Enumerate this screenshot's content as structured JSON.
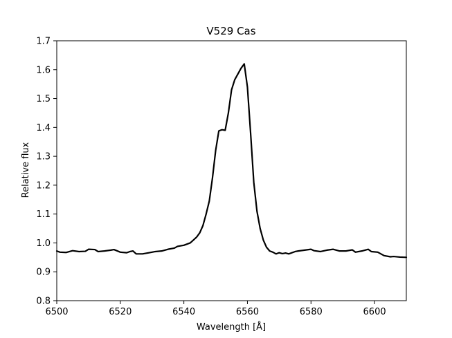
{
  "chart_data": {
    "type": "line",
    "title": "V529 Cas",
    "xlabel": "Wavelength [Å]",
    "ylabel": "Relative flux",
    "xlim": [
      6500,
      6610
    ],
    "ylim": [
      0.8,
      1.7
    ],
    "grid": false,
    "x_ticks": [
      6500,
      6520,
      6540,
      6560,
      6580,
      6600
    ],
    "x_tick_labels": [
      "6500",
      "6520",
      "6540",
      "6560",
      "6580",
      "6600"
    ],
    "y_ticks": [
      0.8,
      0.9,
      1.0,
      1.1,
      1.2,
      1.3,
      1.4,
      1.5,
      1.6,
      1.7
    ],
    "y_tick_labels": [
      "0.8",
      "0.9",
      "1.0",
      "1.1",
      "1.2",
      "1.3",
      "1.4",
      "1.5",
      "1.6",
      "1.7"
    ],
    "line_color": "#000000",
    "series": [
      {
        "x": [
          6500,
          6501,
          6503,
          6505,
          6507,
          6509,
          6510,
          6512,
          6513,
          6515,
          6517,
          6518,
          6520,
          6522,
          6523,
          6524,
          6525,
          6527,
          6529,
          6531,
          6533,
          6535,
          6537,
          6538,
          6540,
          6542,
          6543,
          6544,
          6545,
          6546,
          6547,
          6548,
          6549,
          6550,
          6551,
          6552,
          6553,
          6554,
          6555,
          6556,
          6557,
          6558,
          6559,
          6560,
          6561,
          6562,
          6563,
          6564,
          6565,
          6566,
          6567,
          6568,
          6569,
          6570,
          6571,
          6572,
          6573,
          6575,
          6576,
          6578,
          6580,
          6581,
          6583,
          6585,
          6587,
          6589,
          6591,
          6593,
          6594,
          6596,
          6598,
          6599,
          6601,
          6603,
          6605,
          6606,
          6608,
          6610
        ],
        "y": [
          0.972,
          0.968,
          0.967,
          0.973,
          0.97,
          0.971,
          0.978,
          0.977,
          0.97,
          0.972,
          0.975,
          0.977,
          0.968,
          0.966,
          0.97,
          0.972,
          0.962,
          0.962,
          0.966,
          0.97,
          0.972,
          0.978,
          0.982,
          0.988,
          0.992,
          1.0,
          1.01,
          1.02,
          1.035,
          1.06,
          1.1,
          1.145,
          1.225,
          1.32,
          1.388,
          1.392,
          1.39,
          1.45,
          1.53,
          1.565,
          1.585,
          1.605,
          1.62,
          1.54,
          1.38,
          1.21,
          1.11,
          1.05,
          1.01,
          0.985,
          0.972,
          0.968,
          0.962,
          0.966,
          0.963,
          0.965,
          0.962,
          0.97,
          0.972,
          0.975,
          0.978,
          0.973,
          0.97,
          0.975,
          0.978,
          0.972,
          0.972,
          0.976,
          0.968,
          0.972,
          0.978,
          0.97,
          0.968,
          0.956,
          0.952,
          0.953,
          0.951,
          0.95
        ]
      }
    ]
  }
}
